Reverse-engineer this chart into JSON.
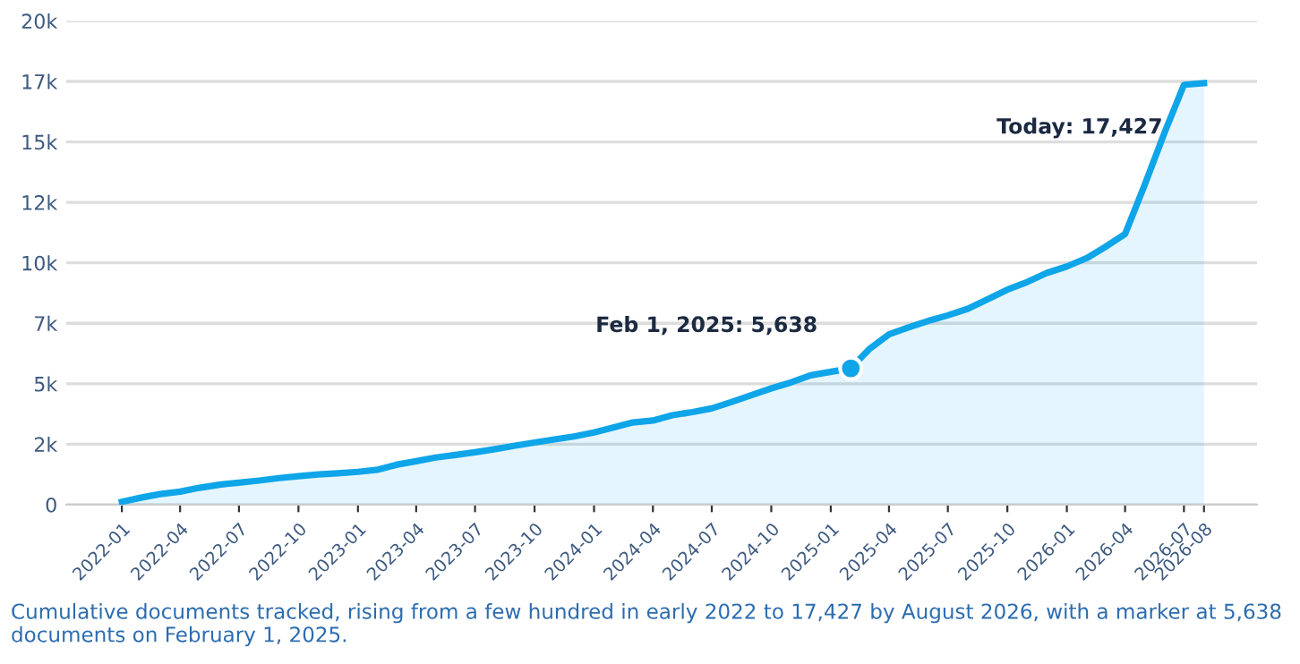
{
  "chart_data": {
    "type": "area",
    "x": [
      "2022-01",
      "2022-02",
      "2022-03",
      "2022-04",
      "2022-05",
      "2022-06",
      "2022-07",
      "2022-08",
      "2022-09",
      "2022-10",
      "2022-11",
      "2022-12",
      "2023-01",
      "2023-02",
      "2023-03",
      "2023-04",
      "2023-05",
      "2023-06",
      "2023-07",
      "2023-08",
      "2023-09",
      "2023-10",
      "2023-11",
      "2023-12",
      "2024-01",
      "2024-02",
      "2024-03",
      "2024-04",
      "2024-05",
      "2024-06",
      "2024-07",
      "2024-08",
      "2024-09",
      "2024-10",
      "2024-11",
      "2024-12",
      "2025-02-01",
      "2025-03",
      "2025-04",
      "2025-05",
      "2025-06",
      "2025-07",
      "2025-08",
      "2025-09",
      "2025-10",
      "2025-11",
      "2025-12",
      "2026-01",
      "2026-02",
      "2026-03",
      "2026-04",
      "2026-05",
      "2026-06",
      "2026-07",
      "2026-08"
    ],
    "series": [
      {
        "color": "#0ea5e9",
        "values": [
          120,
          300,
          440,
          540,
          700,
          830,
          910,
          1000,
          1100,
          1180,
          1250,
          1300,
          1360,
          1450,
          1650,
          1800,
          1950,
          2060,
          2170,
          2300,
          2440,
          2570,
          2700,
          2820,
          2990,
          3200,
          3400,
          3480,
          3700,
          3830,
          3980,
          4250,
          4540,
          4810,
          5060,
          5350,
          5638,
          6420,
          7040,
          7330,
          7600,
          7830,
          8100,
          8500,
          8890,
          9210,
          9580,
          9850,
          10200,
          10650,
          11190,
          13200,
          15380,
          17360,
          17427
        ]
      },
      {
        "type": "scatter",
        "color": "#0ea5e9",
        "x": [
          "2025-02-01"
        ],
        "values": [
          5638
        ]
      }
    ],
    "xlim": [
      "2021-10-07",
      "2026-10-22"
    ],
    "xticks": [
      {
        "value": "2022-01",
        "label": "2022-01"
      },
      {
        "value": "2022-04",
        "label": "2022-04"
      },
      {
        "value": "2022-07",
        "label": "2022-07"
      },
      {
        "value": "2022-10",
        "label": "2022-10"
      },
      {
        "value": "2023-01",
        "label": "2023-01"
      },
      {
        "value": "2023-04",
        "label": "2023-04"
      },
      {
        "value": "2023-07",
        "label": "2023-07"
      },
      {
        "value": "2023-10",
        "label": "2023-10"
      },
      {
        "value": "2024-01",
        "label": "2024-01"
      },
      {
        "value": "2024-04",
        "label": "2024-04"
      },
      {
        "value": "2024-07",
        "label": "2024-07"
      },
      {
        "value": "2024-10",
        "label": "2024-10"
      },
      {
        "value": "2025-01",
        "label": "2025-01"
      },
      {
        "value": "2025-04",
        "label": "2025-04"
      },
      {
        "value": "2025-07",
        "label": "2025-07"
      },
      {
        "value": "2025-10",
        "label": "2025-10"
      },
      {
        "value": "2026-01",
        "label": "2026-01"
      },
      {
        "value": "2026-04",
        "label": "2026-04"
      },
      {
        "value": "2026-07",
        "label": "2026-07"
      },
      {
        "value": "2026-08",
        "label": "2026-08"
      }
    ],
    "ylim": [
      0,
      20000
    ],
    "yticks": [
      0,
      {
        "value": 2500,
        "label": "2k"
      },
      {
        "value": 5000,
        "label": "5k"
      },
      {
        "value": 7500,
        "label": "7k"
      },
      {
        "value": 10000,
        "label": "10k"
      },
      {
        "value": 12500,
        "label": "12k"
      },
      {
        "value": 15000,
        "label": "15k"
      },
      {
        "value": 17500,
        "label": "17k"
      },
      {
        "value": 20000,
        "label": "20k"
      }
    ],
    "grid": "y",
    "annotations": [
      {
        "text": "Feb 1, 2025: 5,638",
        "x": "2025-02-01",
        "y": 5638
      },
      {
        "text": "Today: 17,427",
        "x": "2026-08",
        "y": 17427
      },
      "Cumulative documents tracked, rising from a few hundred in early 2022 to 17,427 by August 2026, with a marker at 5,638 documents on February 1, 2025."
    ]
  }
}
